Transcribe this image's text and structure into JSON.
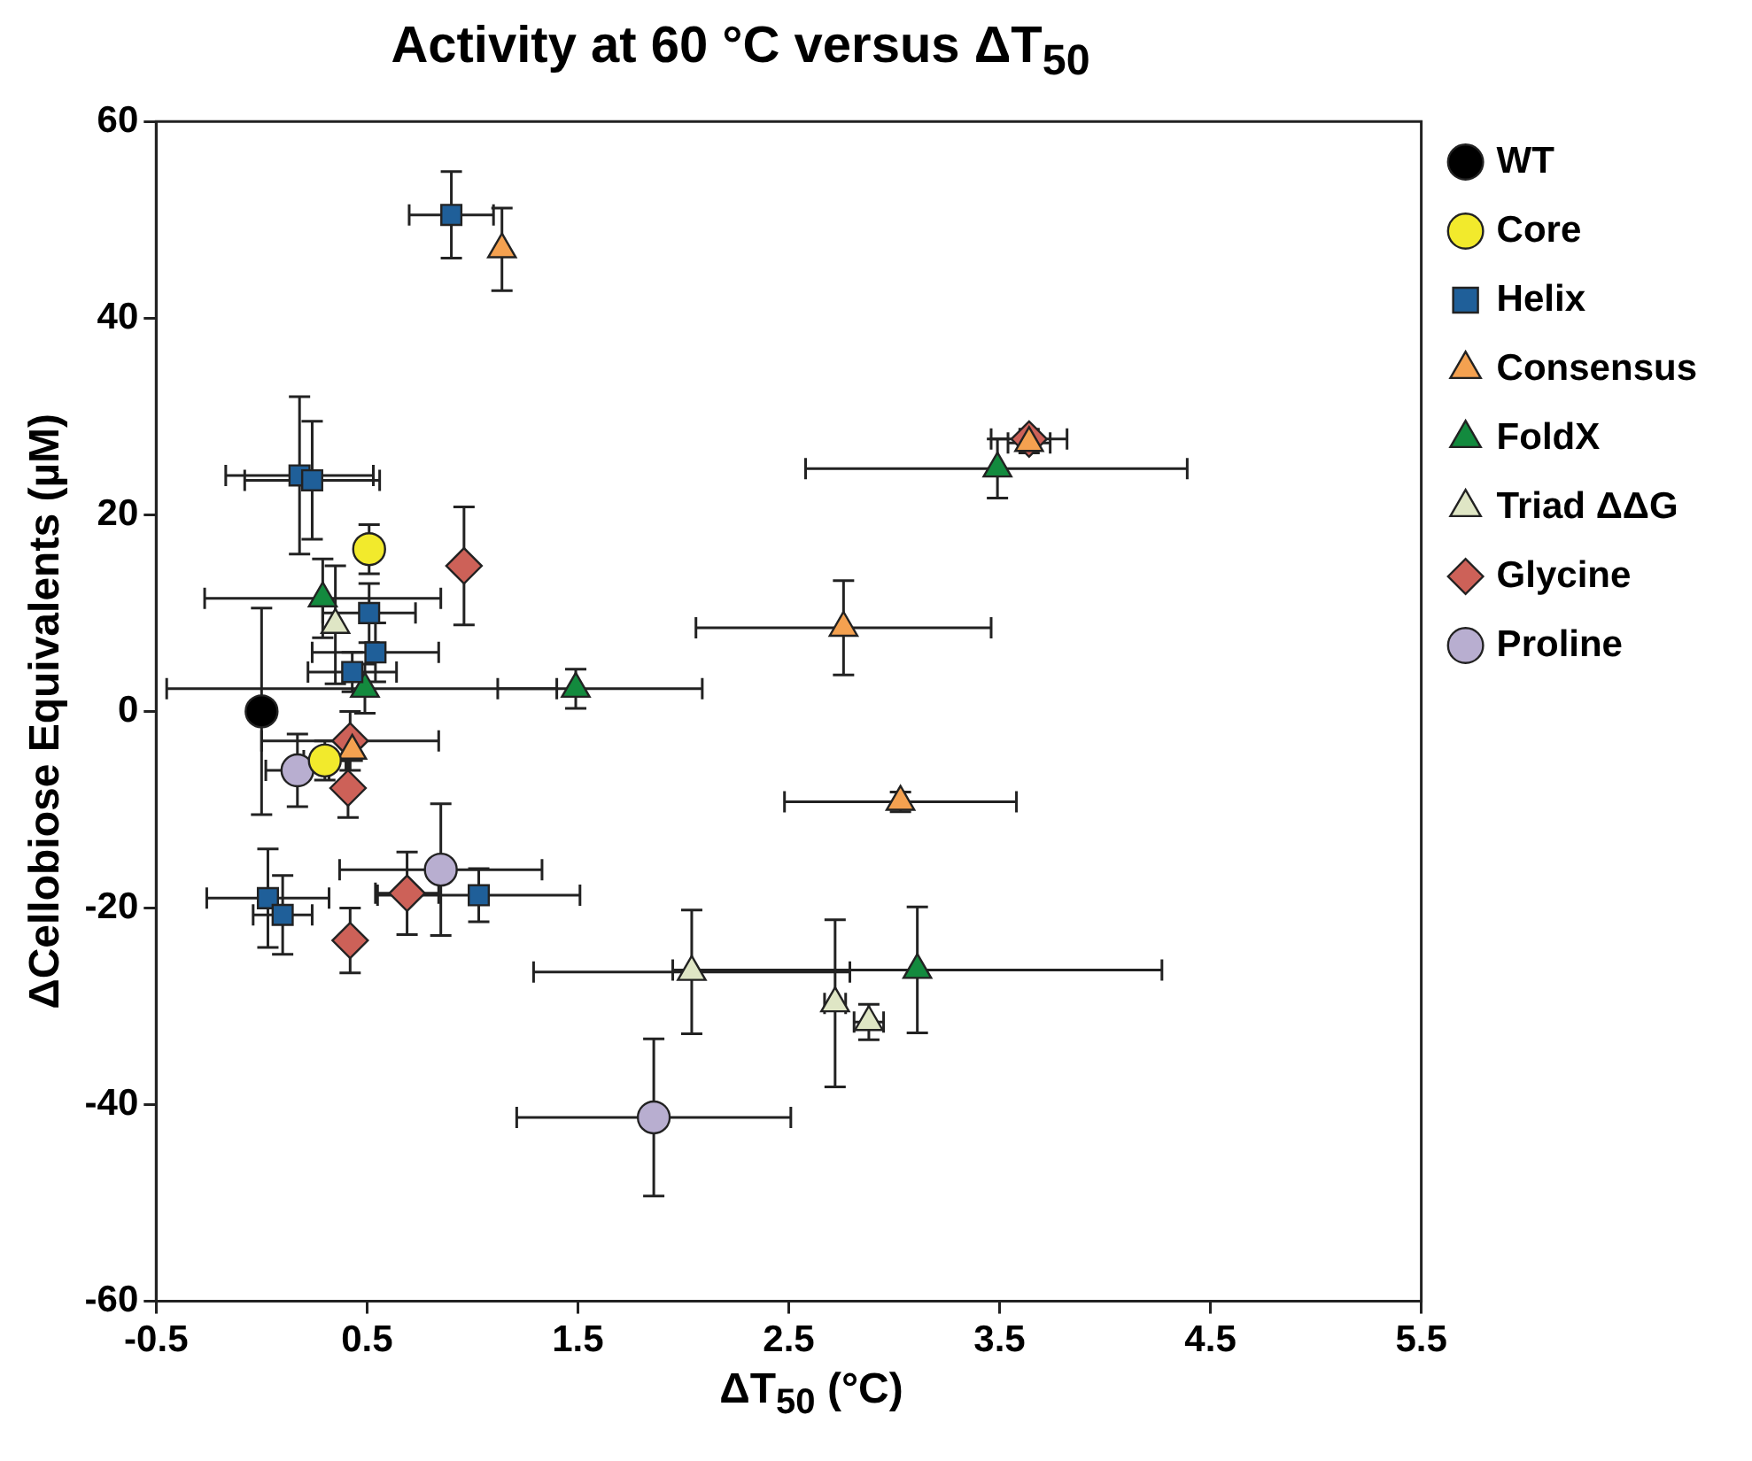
{
  "chart_data": {
    "type": "scatter",
    "title": "Activity at 60 °C versus ΔT$_{50}$",
    "xlabel": "ΔT$_{50}$ (°C)",
    "ylabel": "ΔCellobiose Equivalents (µM)",
    "xlim": [
      -0.5,
      5.5
    ],
    "xticks": [
      -0.5,
      0.5,
      1.5,
      2.5,
      3.5,
      4.5,
      5.5
    ],
    "ylim": [
      -60,
      60
    ],
    "yticks": [
      -60,
      -40,
      -20,
      0,
      20,
      40,
      60
    ],
    "grid": false,
    "legend": "right",
    "series": [
      {
        "name": "WT",
        "color": "#000000",
        "marker": "circle",
        "x": [
          0
        ],
        "values": [
          0
        ],
        "errors": [
          10.5
        ],
        "xerrors": [
          null
        ]
      },
      {
        "name": "Core",
        "color": "#f2ea2c",
        "marker": "circle",
        "x": [
          0.51,
          0.3
        ],
        "values": [
          16.5,
          -5
        ],
        "errors": [
          2.5,
          2
        ],
        "xerrors": [
          null,
          0.1
        ]
      },
      {
        "name": "Helix",
        "color": "#1f5f99",
        "marker": "square",
        "x": [
          0.18,
          0.24,
          0.51,
          0.54,
          0.43,
          0.9,
          0.03,
          0.1,
          1.03
        ],
        "values": [
          24,
          23.5,
          10,
          6,
          4,
          50.5,
          -19,
          -20.7,
          -18.7
        ],
        "errors": [
          8,
          6,
          3,
          3,
          2,
          4.4,
          5,
          4,
          2.7
        ],
        "xerrors": [
          0.35,
          0.32,
          0.22,
          0.3,
          0.21,
          0.2,
          0.29,
          0.14,
          0.48
        ]
      },
      {
        "name": "Consensus",
        "color": "#f4a150",
        "marker": "triangle",
        "x": [
          1.14,
          3.64,
          2.76,
          3.03,
          0.43
        ],
        "values": [
          47,
          27.3,
          8.5,
          -9.2,
          -4
        ],
        "errors": [
          4.2,
          1,
          4.8,
          1,
          1
        ],
        "xerrors": [
          null,
          0.1,
          0.7,
          0.55,
          null
        ]
      },
      {
        "name": "FoldX",
        "color": "#138a3e",
        "marker": "triangle",
        "x": [
          0.29,
          0.49,
          1.49,
          3.49,
          3.11
        ],
        "values": [
          11.5,
          2.3,
          2.3,
          24.7,
          -26.3
        ],
        "errors": [
          4,
          2.5,
          2,
          3,
          6.4
        ],
        "xerrors": [
          0.56,
          [
            -0.45,
            1.4
          ],
          [
            1.12,
            2.09
          ],
          [
            2.58,
            4.39
          ],
          1.16
        ]
      },
      {
        "name": "Triad ΔΔG",
        "color": "#dfe6c5",
        "marker": "triangle",
        "x": [
          0.35,
          2.04,
          2.72,
          2.88
        ],
        "values": [
          8.8,
          -26.5,
          -29.7,
          -31.6
        ],
        "errors": [
          6,
          6.3,
          8.5,
          1.8
        ],
        "xerrors": [
          null,
          0.75,
          0.05,
          0.07
        ]
      },
      {
        "name": "Glycine",
        "color": "#cd6158",
        "marker": "diamond",
        "x": [
          0.96,
          0.42,
          0.41,
          3.64,
          0.69,
          0.42
        ],
        "values": [
          14.8,
          -3,
          -7.8,
          27.7,
          -18.5,
          -23.3
        ],
        "errors": [
          6,
          3,
          3,
          1,
          4.2,
          3.3
        ],
        "xerrors": [
          null,
          0.42,
          null,
          0.18,
          0.15,
          null
        ]
      },
      {
        "name": "Proline",
        "color": "#b8aed0",
        "marker": "circle",
        "x": [
          0.17,
          0.85,
          1.86
        ],
        "values": [
          -6,
          -16.1,
          -41.3
        ],
        "errors": [
          3.7,
          6.7,
          8
        ],
        "xerrors": [
          0.15,
          0.48,
          0.65
        ]
      }
    ]
  }
}
